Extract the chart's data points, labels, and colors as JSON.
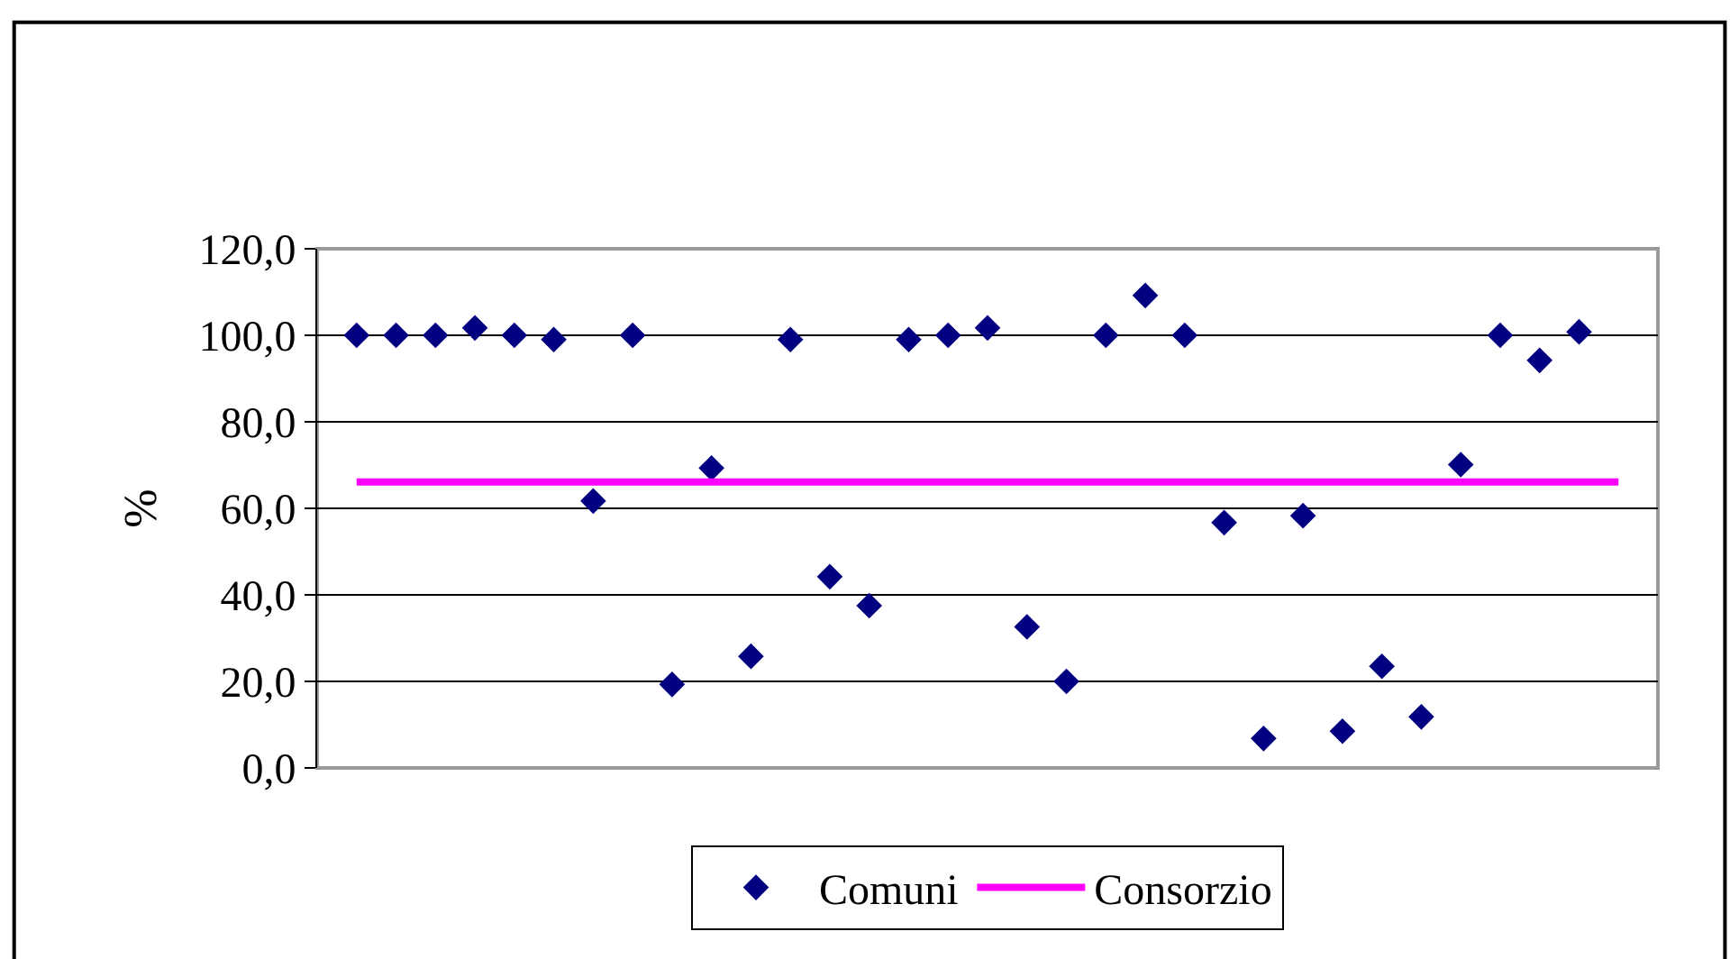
{
  "chart_data": {
    "type": "scatter",
    "ylabel": "%",
    "categories": [
      null,
      null,
      null,
      null,
      null,
      null,
      null,
      null,
      null,
      null,
      null,
      null,
      null,
      null,
      null,
      null,
      null,
      null,
      null,
      null,
      null,
      null,
      null,
      null,
      null,
      null,
      null,
      null,
      null,
      null,
      null,
      null,
      null
    ],
    "series": [
      {
        "name": "Comuni",
        "color": "#000080",
        "marker": "diamond",
        "values": [
          100,
          100,
          100,
          101.7,
          100,
          99.0,
          61.7,
          100,
          19.3,
          69.3,
          25.8,
          99.0,
          44.2,
          37.5,
          99.0,
          100,
          101.7,
          32.6,
          20.0,
          100,
          109.2,
          100,
          56.7,
          6.8,
          58.3,
          8.5,
          23.5,
          11.8,
          70.1,
          100,
          94.2,
          100.8,
          null
        ]
      },
      {
        "name": "Consorzio",
        "type": "line",
        "color": "#ff00ff",
        "marker": "none",
        "line_style": "solid",
        "values": [
          66.1,
          66.1,
          66.1,
          66.1,
          66.1,
          66.1,
          66.1,
          66.1,
          66.1,
          66.1,
          66.1,
          66.1,
          66.1,
          66.1,
          66.1,
          66.1,
          66.1,
          66.1,
          66.1,
          66.1,
          66.1,
          66.1,
          66.1,
          66.1,
          66.1,
          66.1,
          66.1,
          66.1,
          66.1,
          66.1,
          66.1,
          66.1,
          66.1
        ]
      }
    ],
    "ylim": [
      0,
      120
    ],
    "yticks": [
      {
        "value": 0,
        "label": "0,0"
      },
      {
        "value": 20,
        "label": "20,0"
      },
      {
        "value": 40,
        "label": "40,0"
      },
      {
        "value": 60,
        "label": "60,0"
      },
      {
        "value": 80,
        "label": "80,0"
      },
      {
        "value": 100,
        "label": "100,0"
      },
      {
        "value": 120,
        "label": "120,0"
      }
    ],
    "grid": "y",
    "legend": "bottom",
    "tick_labels": "y"
  }
}
